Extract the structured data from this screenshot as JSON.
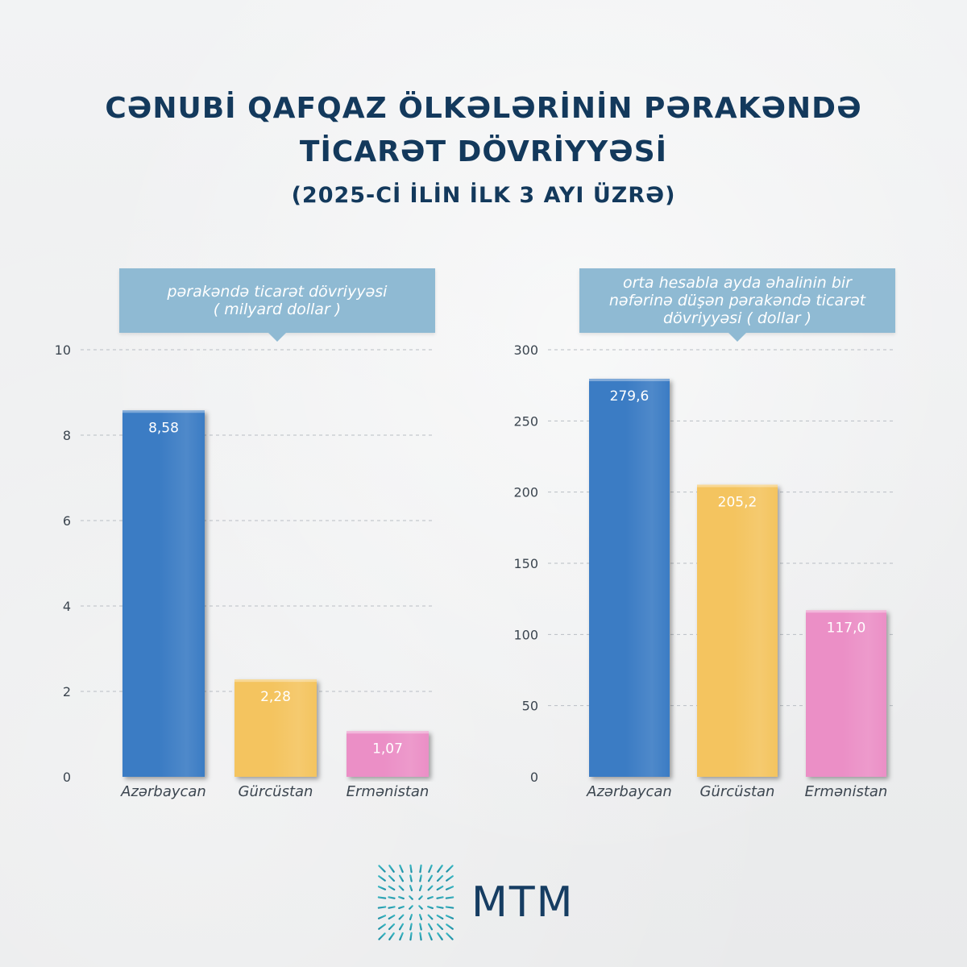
{
  "header": {
    "title_line1": "CƏNUBİ QAFQAZ ÖLKƏLƏRİNİN PƏRAKƏNDƏ",
    "title_line2": "TİCARƏT DÖVRİYYƏSİ",
    "subtitle": "(2025-Cİ İLİN İLK 3 AYI ÜZRƏ)"
  },
  "brand": {
    "name": "MTM",
    "logo_icon": "radial-lines-square-icon",
    "color": "#163d62"
  },
  "colors": {
    "Azərbaycan": "#3a7cc4",
    "Gürcüstan": "#f4c45e",
    "Ermənistan": "#eb8fc6",
    "callout": "#8fbad3",
    "title": "#13395c"
  },
  "chart_data": [
    {
      "type": "bar",
      "title_line1": "pərakəndə ticarət dövriyyəsi",
      "title_line2": "( milyard dollar )",
      "categories": [
        "Azərbaycan",
        "Gürcüstan",
        "Ermənistan"
      ],
      "values": [
        8.58,
        2.28,
        1.07
      ],
      "value_labels": [
        "8,58",
        "2,28",
        "1,07"
      ],
      "ylim": [
        0,
        10
      ],
      "yticks": [
        0,
        2,
        4,
        6,
        8,
        10
      ],
      "grid": true
    },
    {
      "type": "bar",
      "title_line1": "orta hesabla ayda əhalinin bir",
      "title_line2": "nəfərinə düşən pərakəndə ticarət",
      "title_line3": "dövriyyəsi ( dollar )",
      "categories": [
        "Azərbaycan",
        "Gürcüstan",
        "Ermənistan"
      ],
      "values": [
        279.6,
        205.2,
        117.0
      ],
      "value_labels": [
        "279,6",
        "205,2",
        "117,0"
      ],
      "ylim": [
        0,
        300
      ],
      "yticks": [
        0,
        50,
        100,
        150,
        200,
        250,
        300
      ],
      "grid": true
    }
  ]
}
